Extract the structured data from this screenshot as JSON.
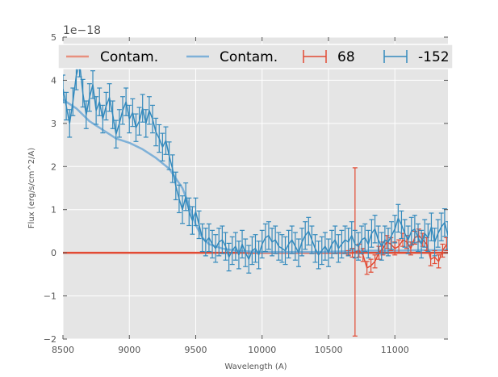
{
  "chart_data": {
    "type": "line",
    "title": "",
    "xlabel": "Wavelength (A)",
    "ylabel": "Flux (erg/s/cm^2/A)",
    "offset_text": "1e−18",
    "xlim": [
      8500,
      11400
    ],
    "ylim": [
      -2,
      5
    ],
    "x_ticks": [
      8500,
      9000,
      9500,
      10000,
      10500,
      11000
    ],
    "x_tick_labels": [
      "8500",
      "9000",
      "9500",
      "10000",
      "10500",
      "11000"
    ],
    "y_ticks": [
      -2,
      -1,
      0,
      1,
      2,
      3,
      4,
      5
    ],
    "y_tick_labels": [
      "−2",
      "−1",
      "0",
      "1",
      "2",
      "3",
      "4",
      "5"
    ],
    "grid": true,
    "legend_placement": "top",
    "legend": [
      {
        "label": "Contam.",
        "kind": "line",
        "color": "#e24a33"
      },
      {
        "label": "Contam.",
        "kind": "line",
        "color": "#348abd"
      },
      {
        "label": "68",
        "kind": "errorbar",
        "color": "#e24a33"
      },
      {
        "label": "-152",
        "kind": "errorbar",
        "color": "#348abd"
      }
    ],
    "series": [
      {
        "name": "Contam. (68)",
        "kind": "line",
        "color": "#e24a33",
        "x": [
          8500,
          11400
        ],
        "y": [
          0.0,
          0.0
        ]
      },
      {
        "name": "Contam. (-152)",
        "kind": "line",
        "color": "#7fb1d8",
        "x": [
          8500,
          8600,
          8700,
          8800,
          8900,
          9000,
          9100,
          9200,
          9300,
          9400,
          9450,
          9500,
          9550,
          9600,
          9700,
          9800,
          9900,
          10000,
          10200,
          10400,
          10600,
          10800,
          11000,
          11200,
          11400
        ],
        "y": [
          3.55,
          3.35,
          3.05,
          2.85,
          2.65,
          2.55,
          2.4,
          2.2,
          1.95,
          1.5,
          1.1,
          0.65,
          0.35,
          0.2,
          0.1,
          0.05,
          0.03,
          0.02,
          0.02,
          0.02,
          0.03,
          0.05,
          0.05,
          0.06,
          0.06
        ]
      },
      {
        "name": "68",
        "kind": "errorbar",
        "color": "#e24a33",
        "x": [
          10650,
          10680,
          10700,
          10730,
          10760,
          10790,
          10820,
          10850,
          10880,
          10910,
          10940,
          10970,
          11000,
          11030,
          11060,
          11090,
          11120,
          11150,
          11180,
          11210,
          11240,
          11270,
          11300,
          11330,
          11360,
          11390
        ],
        "y": [
          0.0,
          0.0,
          0.02,
          0.05,
          -0.05,
          -0.35,
          -0.3,
          -0.2,
          0.0,
          0.1,
          0.25,
          0.2,
          0.1,
          0.15,
          0.3,
          0.25,
          0.1,
          0.35,
          0.4,
          0.3,
          0.2,
          -0.15,
          -0.1,
          -0.2,
          0.05,
          0.2
        ],
        "err": [
          0.05,
          0.1,
          1.95,
          0.15,
          0.15,
          0.15,
          0.15,
          0.15,
          0.15,
          0.15,
          0.15,
          0.15,
          0.15,
          0.15,
          0.15,
          0.15,
          0.15,
          0.15,
          0.15,
          0.15,
          0.15,
          0.15,
          0.15,
          0.15,
          0.15,
          0.15
        ]
      },
      {
        "name": "-152",
        "kind": "errorbar",
        "color": "#348abd",
        "x": [
          8500,
          8525,
          8550,
          8575,
          8600,
          8625,
          8650,
          8675,
          8700,
          8725,
          8750,
          8775,
          8800,
          8825,
          8850,
          8875,
          8900,
          8925,
          8950,
          8975,
          9000,
          9025,
          9050,
          9075,
          9100,
          9125,
          9150,
          9175,
          9200,
          9225,
          9250,
          9275,
          9300,
          9325,
          9350,
          9375,
          9400,
          9425,
          9450,
          9475,
          9500,
          9525,
          9550,
          9575,
          9600,
          9625,
          9650,
          9675,
          9700,
          9725,
          9750,
          9775,
          9800,
          9825,
          9850,
          9875,
          9900,
          9925,
          9950,
          9975,
          10000,
          10025,
          10050,
          10075,
          10100,
          10125,
          10150,
          10175,
          10200,
          10225,
          10250,
          10275,
          10300,
          10325,
          10350,
          10375,
          10400,
          10425,
          10450,
          10475,
          10500,
          10525,
          10550,
          10575,
          10600,
          10625,
          10650,
          10675,
          10700,
          10725,
          10750,
          10775,
          10800,
          10825,
          10850,
          10875,
          10900,
          10925,
          10950,
          10975,
          11000,
          11025,
          11050,
          11075,
          11100,
          11125,
          11150,
          11175,
          11200,
          11225,
          11250,
          11275,
          11300,
          11325,
          11350,
          11375,
          11400
        ],
        "y": [
          3.8,
          3.4,
          3.0,
          3.5,
          4.1,
          4.4,
          3.7,
          3.2,
          3.6,
          3.9,
          3.3,
          3.5,
          3.1,
          3.4,
          3.6,
          3.2,
          2.75,
          3.0,
          3.3,
          3.5,
          3.1,
          3.25,
          2.9,
          3.05,
          3.35,
          3.0,
          3.3,
          3.1,
          2.8,
          2.65,
          2.45,
          2.6,
          2.25,
          1.95,
          1.55,
          1.25,
          1.0,
          1.3,
          0.95,
          0.75,
          0.95,
          0.65,
          0.35,
          0.25,
          0.35,
          0.2,
          0.1,
          0.25,
          0.3,
          0.15,
          -0.1,
          0.05,
          0.15,
          -0.05,
          0.2,
          0.0,
          -0.15,
          0.05,
          0.1,
          -0.05,
          0.2,
          0.35,
          0.4,
          0.25,
          0.3,
          0.15,
          0.1,
          0.05,
          0.2,
          0.3,
          0.15,
          0.0,
          0.25,
          0.4,
          0.5,
          0.3,
          0.1,
          -0.05,
          0.05,
          0.15,
          0.0,
          0.2,
          0.3,
          0.1,
          0.2,
          0.3,
          0.25,
          0.4,
          0.2,
          0.15,
          0.3,
          0.35,
          0.2,
          0.45,
          0.55,
          0.3,
          0.15,
          0.3,
          0.25,
          0.4,
          0.55,
          0.8,
          0.65,
          0.45,
          0.3,
          0.5,
          0.55,
          0.35,
          0.2,
          0.45,
          0.35,
          0.6,
          0.25,
          0.45,
          0.6,
          0.7,
          0.4
        ]
      }
    ]
  }
}
